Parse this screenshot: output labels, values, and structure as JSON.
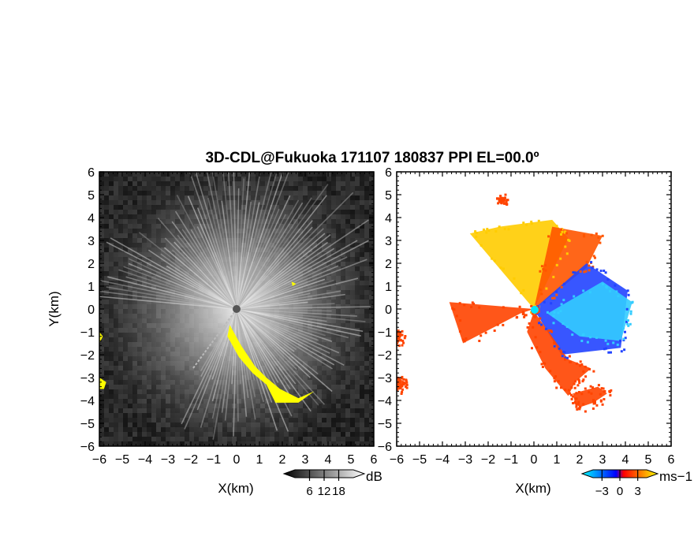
{
  "title": "3D-CDL@Fukuoka 171107 180837 PPI EL=00.0º",
  "chart_data": [
    {
      "type": "heatmap",
      "panel": "left",
      "quantity": "reflectivity",
      "xlabel": "X(km)",
      "ylabel": "Y(km)",
      "xlim": [
        -6,
        6
      ],
      "ylim": [
        -6,
        6
      ],
      "xticks": [
        "−6",
        "−5",
        "−4",
        "−3",
        "−2",
        "−1",
        "0",
        "1",
        "2",
        "3",
        "4",
        "5",
        "6"
      ],
      "yticks": [
        "6",
        "5",
        "4",
        "3",
        "2",
        "1",
        "0",
        "−1",
        "−2",
        "−3",
        "−4",
        "−5",
        "−6"
      ],
      "colorbar": {
        "unit": "dB",
        "ticks": [
          6,
          12,
          18
        ],
        "tick_labels": [
          "6",
          "12",
          "18"
        ],
        "range": [
          0,
          24
        ],
        "colors": [
          "#000000",
          "#ffffff"
        ]
      },
      "background_color": "#262626",
      "highlight_color": "#ffff00",
      "highlight_regions": [
        {
          "points": [
            [
              -0.3,
              -0.7
            ],
            [
              0.2,
              -1.6
            ],
            [
              0.8,
              -2.5
            ],
            [
              1.3,
              -3.0
            ],
            [
              1.9,
              -3.5
            ],
            [
              2.7,
              -3.9
            ],
            [
              3.4,
              -3.6
            ],
            [
              2.7,
              -4.1
            ],
            [
              1.7,
              -4.1
            ],
            [
              1.3,
              -3.3
            ],
            [
              0.7,
              -2.8
            ],
            [
              0.1,
              -2.1
            ],
            [
              -0.4,
              -1.2
            ]
          ]
        },
        {
          "points": [
            [
              -6.0,
              -1.0
            ],
            [
              -5.85,
              -1.2
            ],
            [
              -6.0,
              -1.5
            ]
          ]
        },
        {
          "points": [
            [
              -6.0,
              -3.0
            ],
            [
              -5.7,
              -3.2
            ],
            [
              -5.8,
              -3.5
            ],
            [
              -6.0,
              -3.5
            ]
          ]
        },
        {
          "points": [
            [
              2.4,
              1.2
            ],
            [
              2.6,
              1.1
            ],
            [
              2.45,
              1.0
            ]
          ]
        }
      ]
    },
    {
      "type": "heatmap",
      "panel": "right",
      "quantity": "radial velocity",
      "xlabel": "X(km)",
      "xlim": [
        -6,
        6
      ],
      "ylim": [
        -6,
        6
      ],
      "xticks": [
        "−6",
        "−5",
        "−4",
        "−3",
        "−2",
        "−1",
        "0",
        "1",
        "2",
        "3",
        "4",
        "5",
        "6"
      ],
      "colorbar": {
        "unit": "ms−1",
        "ticks": [
          -3,
          0,
          3
        ],
        "tick_labels": [
          "−3",
          "0",
          "3"
        ],
        "range": [
          -4.5,
          4.5
        ],
        "colors": [
          "#00ffff",
          "#0000ff",
          "#ff0000",
          "#ffff00"
        ]
      },
      "center_color": "#00ffff",
      "regions": [
        {
          "sign": "positive",
          "color": "#ffcc00",
          "points": [
            [
              0,
              0
            ],
            [
              -2.8,
              3.3
            ],
            [
              -1.5,
              3.6
            ],
            [
              0.8,
              3.9
            ],
            [
              1.5,
              3.1
            ],
            [
              0,
              0
            ]
          ]
        },
        {
          "sign": "positive",
          "color": "#ff5500",
          "points": [
            [
              0,
              0
            ],
            [
              0.8,
              3.6
            ],
            [
              3.0,
              3.2
            ],
            [
              2.3,
              1.8
            ],
            [
              0,
              0
            ]
          ]
        },
        {
          "sign": "negative",
          "color": "#2244ff",
          "points": [
            [
              0,
              0
            ],
            [
              2.3,
              2.0
            ],
            [
              4.1,
              0.8
            ],
            [
              3.8,
              -1.7
            ],
            [
              1.2,
              -2.0
            ],
            [
              0,
              0
            ]
          ]
        },
        {
          "sign": "negative",
          "color": "#33ccff",
          "points": [
            [
              0.6,
              -0.2
            ],
            [
              3.0,
              1.2
            ],
            [
              4.3,
              0.3
            ],
            [
              3.8,
              -1.4
            ],
            [
              2.0,
              -1.2
            ]
          ]
        },
        {
          "sign": "positive",
          "color": "#ff4400",
          "points": [
            [
              0,
              0
            ],
            [
              -3.7,
              0.3
            ],
            [
              -3.1,
              -1.5
            ],
            [
              -0.6,
              -0.2
            ],
            [
              0,
              0
            ]
          ]
        },
        {
          "sign": "positive",
          "color": "#ff4400",
          "points": [
            [
              0,
              -0.1
            ],
            [
              1.5,
              -2.2
            ],
            [
              2.5,
              -2.6
            ],
            [
              1.8,
              -3.2
            ],
            [
              1.5,
              -3.8
            ],
            [
              0.5,
              -2.6
            ],
            [
              -0.3,
              -1.0
            ]
          ]
        },
        {
          "sign": "positive",
          "color": "#ff4400",
          "points": [
            [
              1.7,
              -3.7
            ],
            [
              2.8,
              -3.4
            ],
            [
              3.2,
              -3.7
            ],
            [
              2.6,
              -4.1
            ],
            [
              2.0,
              -4.3
            ],
            [
              1.8,
              -4.1
            ]
          ]
        },
        {
          "sign": "positive",
          "color": "#ff4400",
          "points": [
            [
              -6.0,
              -1.0
            ],
            [
              -5.8,
              -1.2
            ],
            [
              -6.0,
              -1.7
            ]
          ]
        },
        {
          "sign": "positive",
          "color": "#ff4400",
          "points": [
            [
              -6.0,
              -3.0
            ],
            [
              -5.6,
              -3.2
            ],
            [
              -5.8,
              -3.5
            ],
            [
              -6.0,
              -3.5
            ]
          ]
        },
        {
          "sign": "positive",
          "color": "#ff4400",
          "points": [
            [
              -1.5,
              4.9
            ],
            [
              -1.3,
              4.9
            ],
            [
              -1.35,
              4.75
            ],
            [
              -1.5,
              4.75
            ]
          ]
        }
      ]
    }
  ]
}
